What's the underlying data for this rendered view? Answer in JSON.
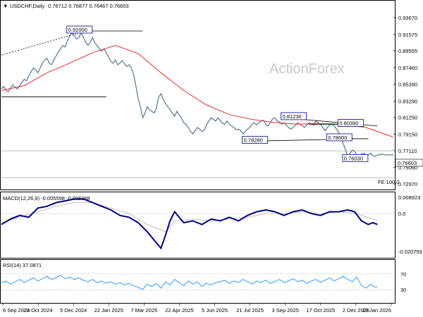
{
  "header": {
    "symbol_title": "USDCHF,Daily",
    "ohlc": "0.76712 0.76877 0.76467 0.76603"
  },
  "watermark": "ActionForex",
  "last_price_label": "0.76603",
  "fe_label": "FE 100.0",
  "colors": {
    "price": "#4a6a8a",
    "ma": "#e03030",
    "macd_line": "#000080",
    "macd_signal": "#c0c0c0",
    "rsi": "#1e90ff",
    "box_border": "#000080"
  },
  "chart_data": [
    {
      "type": "line",
      "panel": "price",
      "x_ticks": [
        "6 Sep 2024",
        "22 Oct 2024",
        "5 Dec 2024",
        "22 Jan 2025",
        "7 Mar 2025",
        "22 Apr 2025",
        "5 Jun 2025",
        "21 Jul 2025",
        "3 Sep 2025",
        "17 Oct 2025",
        "2 Dec 2025",
        "19 Jan 2026"
      ],
      "y_ticks": [
        "0.93670",
        "0.91575",
        "0.89555",
        "0.87460",
        "0.85390",
        "0.83290",
        "0.81250",
        "0.79150",
        "0.77110",
        "0.75060",
        "0.72970"
      ],
      "ylim": [
        0.7255,
        0.9445
      ],
      "series": [
        {
          "kind": "price",
          "x": [
            0,
            2,
            4,
            6,
            8,
            10,
            12,
            14,
            16,
            18,
            20,
            22,
            24,
            26,
            28,
            30,
            32,
            34,
            36,
            38,
            40,
            42,
            44,
            46,
            48,
            50,
            52,
            54,
            56,
            58,
            60,
            62,
            64,
            66,
            68,
            70,
            72,
            74,
            76,
            78,
            80,
            82,
            84,
            86,
            88,
            90,
            92,
            94,
            96,
            98,
            100,
            102,
            104,
            106,
            108,
            110,
            112,
            114,
            116,
            118,
            120,
            122,
            124,
            126,
            128,
            130,
            132,
            134,
            136,
            138,
            140,
            142,
            144,
            146,
            148,
            150,
            152,
            154,
            156,
            158,
            160,
            162,
            164,
            166,
            168,
            170,
            172,
            174,
            176,
            178,
            180,
            182,
            184,
            186,
            188,
            190,
            192,
            194,
            196,
            198,
            200,
            202,
            204,
            206,
            208,
            210,
            212,
            214,
            216,
            218,
            220,
            222,
            224,
            226,
            228,
            230,
            232,
            234,
            236,
            238,
            240,
            242,
            244,
            246,
            248,
            250,
            252,
            254,
            256,
            258,
            260,
            262,
            264,
            266,
            268,
            270,
            272,
            274,
            276,
            278,
            280,
            282,
            284,
            286,
            288,
            290,
            292,
            294,
            296,
            298,
            300,
            302,
            304,
            306,
            308,
            310,
            312,
            314,
            316,
            318,
            320,
            322,
            324,
            326,
            328,
            330,
            332,
            334,
            336,
            338,
            340,
            342,
            344
          ],
          "values": [
            0.848,
            0.851,
            0.846,
            0.844,
            0.849,
            0.853,
            0.85,
            0.848,
            0.852,
            0.856,
            0.86,
            0.858,
            0.864,
            0.869,
            0.874,
            0.872,
            0.868,
            0.874,
            0.88,
            0.884,
            0.886,
            0.88,
            0.878,
            0.884,
            0.889,
            0.894,
            0.898,
            0.902,
            0.9,
            0.908,
            0.914,
            0.918,
            0.914,
            0.91,
            0.912,
            0.918,
            0.912,
            0.906,
            0.902,
            0.906,
            0.912,
            0.905,
            0.902,
            0.898,
            0.895,
            0.898,
            0.893,
            0.888,
            0.882,
            0.88,
            0.884,
            0.878,
            0.88,
            0.883,
            0.879,
            0.876,
            0.878,
            0.874,
            0.866,
            0.852,
            0.836,
            0.826,
            0.812,
            0.818,
            0.826,
            0.822,
            0.82,
            0.818,
            0.824,
            0.838,
            0.842,
            0.835,
            0.83,
            0.826,
            0.822,
            0.818,
            0.814,
            0.82,
            0.816,
            0.812,
            0.806,
            0.804,
            0.8,
            0.795,
            0.792,
            0.796,
            0.8,
            0.798,
            0.795,
            0.797,
            0.803,
            0.808,
            0.812,
            0.81,
            0.808,
            0.812,
            0.809,
            0.805,
            0.804,
            0.808,
            0.804,
            0.802,
            0.8,
            0.797,
            0.798,
            0.796,
            0.792,
            0.795,
            0.798,
            0.8,
            0.804,
            0.806,
            0.803,
            0.806,
            0.808,
            0.809,
            0.804,
            0.802,
            0.806,
            0.811,
            0.812,
            0.808,
            0.807,
            0.804,
            0.806,
            0.803,
            0.8,
            0.798,
            0.8,
            0.803,
            0.806,
            0.804,
            0.802,
            0.8,
            0.803,
            0.806,
            0.804,
            0.803,
            0.808,
            0.806,
            0.804,
            0.8,
            0.796,
            0.8,
            0.803,
            0.804,
            0.802,
            0.798,
            0.794,
            0.788,
            0.78,
            0.772,
            0.764,
            0.768,
            0.772,
            0.77,
            0.766,
            0.765,
            0.767,
            0.768,
            0.766,
            0.766,
            0.768,
            0.765,
            0.764,
            0.766,
            0.766,
            0.767,
            0.766,
            0.766,
            0.766,
            0.766,
            0.766
          ]
        },
        {
          "kind": "moving-average",
          "x": [
            0,
            20,
            40,
            60,
            80,
            100,
            120,
            140,
            160,
            180,
            200,
            220,
            240,
            260,
            280,
            300,
            320,
            340,
            344
          ],
          "values": [
            0.846,
            0.852,
            0.868,
            0.88,
            0.893,
            0.902,
            0.892,
            0.868,
            0.846,
            0.828,
            0.816,
            0.81,
            0.806,
            0.804,
            0.805,
            0.804,
            0.8,
            0.79,
            0.788
          ]
        }
      ],
      "annotations": [
        {
          "label": "0.92000",
          "x": 58,
          "y": 0.92
        },
        {
          "label": "0.81230",
          "x": 246,
          "y": 0.8123
        },
        {
          "label": "0.80390",
          "x": 296,
          "y": 0.8039
        },
        {
          "label": "0.78280",
          "x": 212,
          "y": 0.7828
        },
        {
          "label": "0.78600",
          "x": 286,
          "y": 0.786
        },
        {
          "label": "0.76030",
          "x": 300,
          "y": 0.7603
        }
      ],
      "trend_lines": [
        {
          "from": [
            0,
            0.89
          ],
          "to": [
            74,
            0.92
          ],
          "dashed": true
        },
        {
          "from": [
            58,
            0.92
          ],
          "to": [
            124,
            0.92
          ]
        },
        {
          "from": [
            0,
            0.838
          ],
          "to": [
            92,
            0.838
          ]
        },
        {
          "from": [
            246,
            0.8123
          ],
          "to": [
            330,
            0.8018
          ]
        },
        {
          "from": [
            212,
            0.7828
          ],
          "to": [
            304,
            0.7855
          ]
        },
        {
          "from": [
            270,
            0.8039
          ],
          "to": [
            312,
            0.8039
          ]
        },
        {
          "from": [
            304,
            0.786
          ],
          "to": [
            322,
            0.786
          ]
        },
        {
          "from": [
            0,
            0.771
          ],
          "to": [
            344,
            0.771
          ],
          "thin": true
        },
        {
          "from": [
            0,
            0.7377
          ],
          "to": [
            344,
            0.7377
          ],
          "thin": true
        }
      ]
    },
    {
      "type": "line",
      "panel": "macd",
      "title": "MACD(12,26,9) -0.005598 -0.006388",
      "y_ticks": [
        "0.008923",
        "0.0",
        "-0.020759"
      ],
      "ylim": [
        -0.0235,
        0.0105
      ],
      "series": [
        {
          "kind": "macd",
          "x": [
            0,
            8,
            16,
            24,
            32,
            40,
            48,
            56,
            64,
            72,
            80,
            88,
            96,
            104,
            112,
            120,
            128,
            136,
            140,
            144,
            148,
            152,
            156,
            160,
            168,
            176,
            184,
            192,
            200,
            208,
            216,
            224,
            232,
            240,
            248,
            256,
            264,
            272,
            280,
            288,
            296,
            304,
            310,
            316,
            322,
            326,
            330
          ],
          "values": [
            -0.006,
            -0.003,
            -0.001,
            -0.002,
            0.003,
            0.004,
            0.006,
            0.007,
            0.008,
            0.008,
            0.006,
            0.004,
            0.002,
            -0.001,
            -0.002,
            -0.005,
            -0.01,
            -0.016,
            -0.019,
            -0.012,
            -0.004,
            0.001,
            -0.002,
            -0.005,
            -0.004,
            -0.006,
            -0.003,
            -0.004,
            -0.002,
            -0.004,
            -0.001,
            0.001,
            0.002,
            0.001,
            -0.001,
            0.001,
            0.002,
            0.0,
            -0.001,
            0.001,
            0.001,
            0.002,
            0.001,
            -0.004,
            -0.006,
            -0.005,
            -0.006
          ]
        },
        {
          "kind": "signal",
          "x": [
            0,
            16,
            32,
            48,
            64,
            80,
            96,
            112,
            128,
            144,
            152,
            168,
            184,
            200,
            216,
            232,
            248,
            264,
            280,
            296,
            312,
            330
          ],
          "values": [
            -0.005,
            -0.002,
            0.001,
            0.004,
            0.006,
            0.006,
            0.003,
            0.0,
            -0.006,
            -0.01,
            -0.004,
            -0.003,
            -0.004,
            -0.003,
            -0.002,
            0.0,
            0.0,
            0.001,
            0.0,
            0.001,
            0.0,
            -0.004
          ]
        }
      ]
    },
    {
      "type": "line",
      "panel": "rsi",
      "title": "RSI(14) 37.0871",
      "y_ticks": [
        "70",
        "30"
      ],
      "ylim": [
        0,
        100
      ],
      "series": [
        {
          "kind": "rsi",
          "x": [
            0,
            4,
            8,
            12,
            16,
            20,
            24,
            28,
            32,
            36,
            40,
            44,
            48,
            52,
            56,
            60,
            64,
            68,
            72,
            76,
            80,
            84,
            88,
            92,
            96,
            100,
            104,
            108,
            112,
            116,
            120,
            124,
            128,
            132,
            136,
            140,
            144,
            148,
            152,
            156,
            160,
            164,
            168,
            172,
            176,
            180,
            184,
            188,
            192,
            196,
            200,
            204,
            208,
            212,
            216,
            220,
            224,
            228,
            232,
            236,
            240,
            244,
            248,
            252,
            256,
            260,
            264,
            268,
            272,
            276,
            280,
            284,
            288,
            292,
            296,
            300,
            304,
            308,
            312,
            316,
            320,
            324,
            328,
            330
          ],
          "values": [
            48,
            52,
            44,
            50,
            56,
            48,
            54,
            60,
            52,
            58,
            64,
            56,
            60,
            66,
            58,
            62,
            56,
            60,
            54,
            50,
            56,
            48,
            52,
            46,
            50,
            44,
            48,
            42,
            46,
            40,
            36,
            30,
            44,
            38,
            46,
            34,
            50,
            42,
            56,
            48,
            40,
            52,
            44,
            50,
            38,
            46,
            42,
            48,
            50,
            54,
            46,
            52,
            48,
            56,
            50,
            44,
            52,
            48,
            54,
            46,
            50,
            56,
            48,
            52,
            58,
            50,
            54,
            46,
            52,
            56,
            48,
            54,
            60,
            52,
            58,
            64,
            56,
            50,
            62,
            40,
            34,
            44,
            36,
            37
          ]
        }
      ]
    }
  ]
}
